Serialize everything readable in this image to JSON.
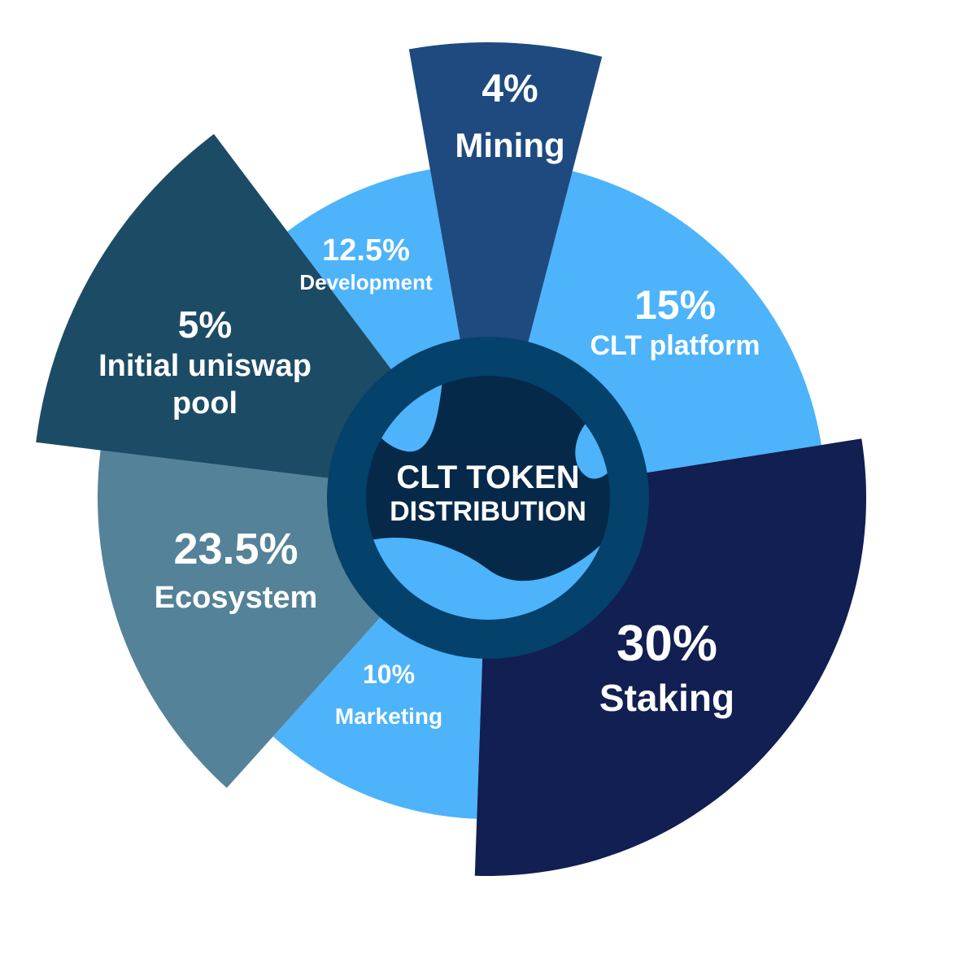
{
  "chart_data": {
    "type": "pie",
    "variant": "radial-rose",
    "title_line1": "CLT TOKEN",
    "title_line2": "DISTRIBUTION",
    "segments": [
      {
        "name": "Mining",
        "value_label": "4%",
        "value": 4,
        "color": "#1e4a80"
      },
      {
        "name": "CLT platform",
        "value_label": "15%",
        "value": 15,
        "color": "#4db3fb"
      },
      {
        "name": "Staking",
        "value_label": "30%",
        "value": 30,
        "color": "#111f52"
      },
      {
        "name": "Marketing",
        "value_label": "10%",
        "value": 10,
        "color": "#4db3fb"
      },
      {
        "name": "Ecosystem",
        "value_label": "23.5%",
        "value": 23.5,
        "color": "#548298"
      },
      {
        "name": "Initial uniswap pool",
        "value_label": "5%",
        "value": 5,
        "color": "#1c4b66"
      },
      {
        "name": "Development",
        "value_label": "12.5%",
        "value": 12.5,
        "color": "#4db3fb"
      }
    ],
    "colors": {
      "center_ring": "#04416b",
      "center_disc": "#06294a",
      "center_wave": "#4db3fb"
    }
  }
}
